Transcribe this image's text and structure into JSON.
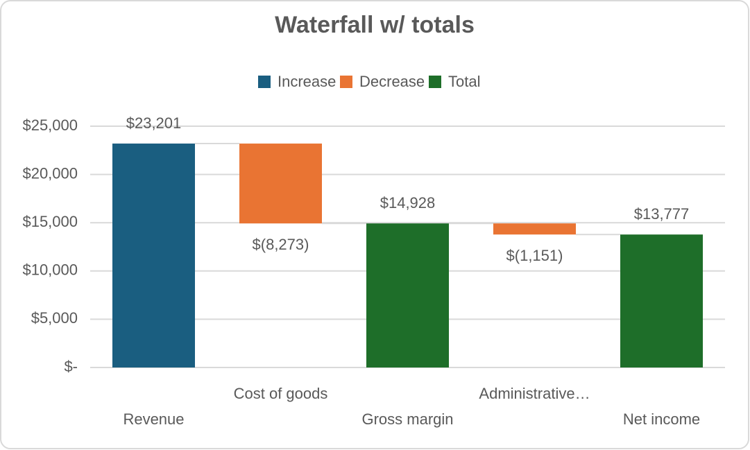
{
  "chart_data": {
    "type": "waterfall",
    "title": "Waterfall w/ totals",
    "legend": [
      {
        "name": "Increase",
        "color": "#1a5e80"
      },
      {
        "name": "Decrease",
        "color": "#e97433"
      },
      {
        "name": "Total",
        "color": "#1e6e29"
      }
    ],
    "categories": [
      "Revenue",
      "Cost of goods",
      "Gross margin",
      "Administrative…",
      "Net income"
    ],
    "values": [
      23201,
      -8273,
      14928,
      -1151,
      13777
    ],
    "value_labels": [
      "$23,201",
      "$(8,273)",
      "$14,928",
      "$(1,151)",
      "$13,777"
    ],
    "kind": [
      0,
      1,
      2,
      1,
      2
    ],
    "ylim": [
      0,
      25000
    ],
    "yticks": [
      {
        "value": 0,
        "label": "$-"
      },
      {
        "value": 5000,
        "label": "$5,000"
      },
      {
        "value": 10000,
        "label": "$10,000"
      },
      {
        "value": 15000,
        "label": "$15,000"
      },
      {
        "value": 20000,
        "label": "$20,000"
      },
      {
        "value": 25000,
        "label": "$25,000"
      }
    ],
    "grid": true
  }
}
